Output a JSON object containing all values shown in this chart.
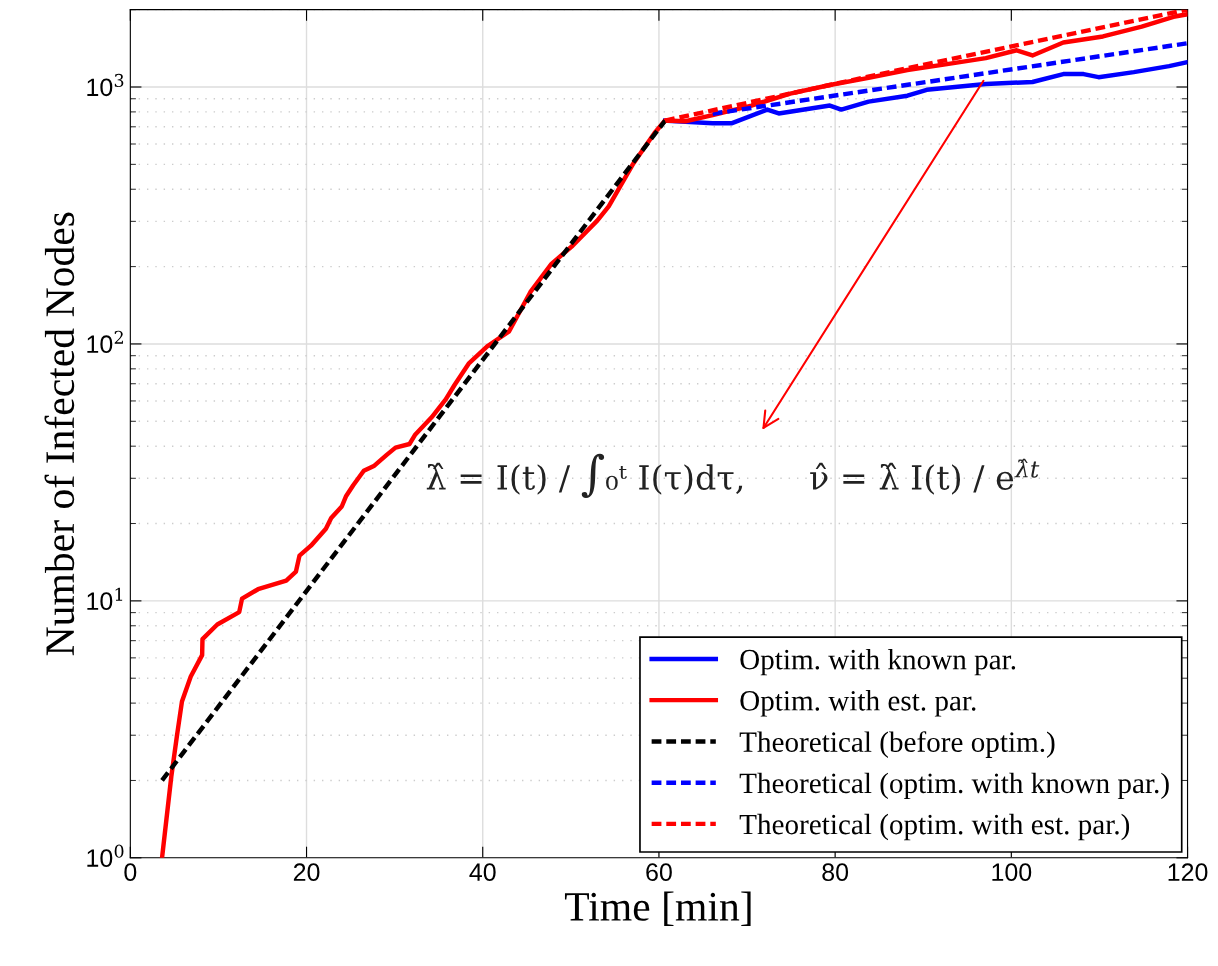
{
  "chart_data": {
    "type": "line",
    "xlabel": "Time [min]",
    "ylabel": "Number of Infected Nodes",
    "xlim": [
      0,
      120
    ],
    "xticks": [
      0,
      20,
      40,
      60,
      80,
      100,
      120
    ],
    "ylim": [
      1,
      2000
    ],
    "yticks": [
      {
        "value": 1,
        "label": "10$^{0}$"
      },
      {
        "value": 10,
        "label": "10$^{1}$"
      },
      {
        "value": 100,
        "label": "10$^{2}$"
      },
      {
        "value": 1000,
        "label": "10$^{3}$"
      }
    ],
    "log": "y",
    "grid": true,
    "legend": "bottom right",
    "marker": "none",
    "series": [
      {
        "name": "Optim. with known par.",
        "color": "#0000ff",
        "line_style": "solid",
        "x": [
          60.7,
          66.1,
          68.3,
          72.3,
          73.6,
          79.4,
          80.7,
          83.8,
          88.2,
          90.4,
          97.1,
          102.4,
          105.9,
          108.2,
          109.9,
          113.9,
          117.9,
          120
        ],
        "values": [
          740,
          723,
          723,
          817,
          789,
          847,
          817,
          877,
          925,
          975,
          1028,
          1046,
          1123,
          1123,
          1092,
          1143,
          1206,
          1250
        ]
      },
      {
        "name": "Optim. with est. par.",
        "color": "#ff0000",
        "line_style": "solid",
        "x": [
          3.6,
          4.65,
          5.3,
          5.86,
          6.86,
          8.15,
          8.19,
          9.87,
          12.36,
          12.68,
          14.5,
          17.7,
          18.8,
          19.2,
          20.5,
          22.2,
          22.8,
          24.0,
          24.5,
          25.3,
          26.5,
          27.7,
          29.1,
          30.1,
          31.7,
          32.3,
          34.2,
          35.8,
          36.8,
          38.4,
          40.6,
          43.0,
          45.4,
          47.8,
          50.2,
          53.0,
          54.3,
          57.1,
          59.5,
          60.7,
          63,
          66.1,
          70.5,
          74.9,
          79.4,
          83.8,
          88.2,
          92.7,
          97.1,
          100.6,
          102.4,
          105.9,
          110.4,
          114.8,
          118.4,
          120
        ],
        "values": [
          1,
          2.07,
          3.0,
          4.06,
          5.08,
          6.15,
          7.1,
          8.09,
          9.04,
          10.2,
          11.1,
          12.0,
          13.0,
          15.0,
          16.4,
          19.1,
          21.0,
          23.3,
          25.6,
          28.2,
          32.1,
          33.6,
          37.0,
          39.5,
          40.8,
          44.2,
          51.8,
          60.8,
          69.2,
          83.8,
          98.4,
          112,
          159,
          205,
          241,
          302,
          343,
          504,
          662,
          741,
          736,
          777,
          847,
          942,
          1018,
          1085,
          1165,
          1228,
          1295,
          1390,
          1327,
          1490,
          1573,
          1718,
          1876,
          1920
        ]
      },
      {
        "name": "Theoretical (before optim.)",
        "color": "#000000",
        "line_style": "dashed",
        "x": [
          3.6,
          60.7
        ],
        "values": [
          2,
          740
        ]
      },
      {
        "name": "Theoretical (optim. with known par.)",
        "color": "#0000ff",
        "line_style": "dashed",
        "x": [
          66.1,
          120
        ],
        "values": [
          787,
          1480
        ]
      },
      {
        "name": "Theoretical (optim. with est. par.)",
        "color": "#ff0000",
        "line_style": "dashed",
        "x": [
          60.7,
          90,
          120
        ],
        "values": [
          740,
          1220,
          2000
        ]
      }
    ],
    "annotations": [
      {
        "text": "λ̂ = I(t) / ∫₀ᵗ I(τ)dτ,      ν̂ = λ̂ I(t) / e$^{λ̂t}$",
        "x": 97,
        "y": 1080
      }
    ]
  }
}
